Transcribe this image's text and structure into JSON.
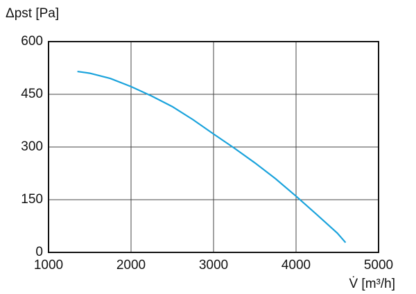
{
  "chart_data": {
    "type": "line",
    "ylabel": "Δpst [Pa]",
    "xlabel": "V̇ [m³/h]",
    "x": [
      1350,
      1500,
      1750,
      2000,
      2250,
      2500,
      2750,
      3000,
      3250,
      3500,
      3750,
      4000,
      4250,
      4500,
      4600
    ],
    "series": [
      {
        "color": "#1aa3dc",
        "values": [
          515,
          510,
          495,
          472,
          445,
          415,
          378,
          337,
          297,
          255,
          210,
          160,
          108,
          55,
          28
        ]
      }
    ],
    "xlim": [
      1000,
      5000
    ],
    "xticks": [
      1000,
      2000,
      3000,
      4000,
      5000
    ],
    "ylim": [
      0,
      600
    ],
    "yticks": [
      0,
      150,
      300,
      450,
      600
    ],
    "grid": true
  }
}
